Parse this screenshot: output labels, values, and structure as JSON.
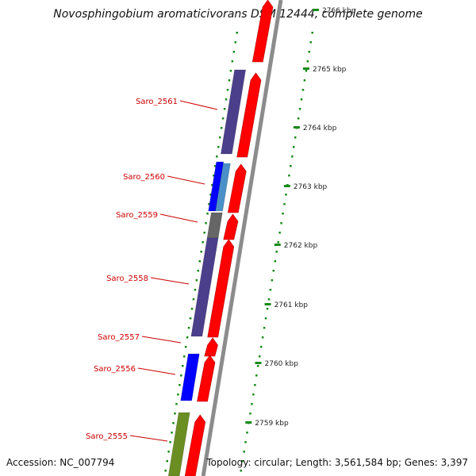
{
  "title": "Novosphingobium aromaticivorans DSM 12444, complete genome",
  "footer": {
    "accession": "Accession: NC_007794",
    "summary": "Topology: circular; Length: 3,561,584 bp; Genes: 3,397"
  },
  "colors": {
    "forward_strand": "#ff0000",
    "reverse_purple": "#4b3f8c",
    "reverse_blue": "#0000ff",
    "reverse_lightblue": "#4a90c8",
    "reverse_gray": "#666666",
    "reverse_green": "#6b8e23",
    "backbone": "#8c8c8c",
    "gc_dots": "#1a8a1a",
    "gene_label": "#cc0000"
  },
  "scale_labels": [
    "2766 kbp",
    "2765 kbp",
    "2764 kbp",
    "2763 kbp",
    "2762 kbp",
    "2761 kbp",
    "2760 kbp",
    "2759 kbp"
  ],
  "gene_labels": [
    "Saro_2561",
    "Saro_2560",
    "Saro_2559",
    "Saro_2558",
    "Saro_2557",
    "Saro_2556",
    "Saro_2555"
  ]
}
